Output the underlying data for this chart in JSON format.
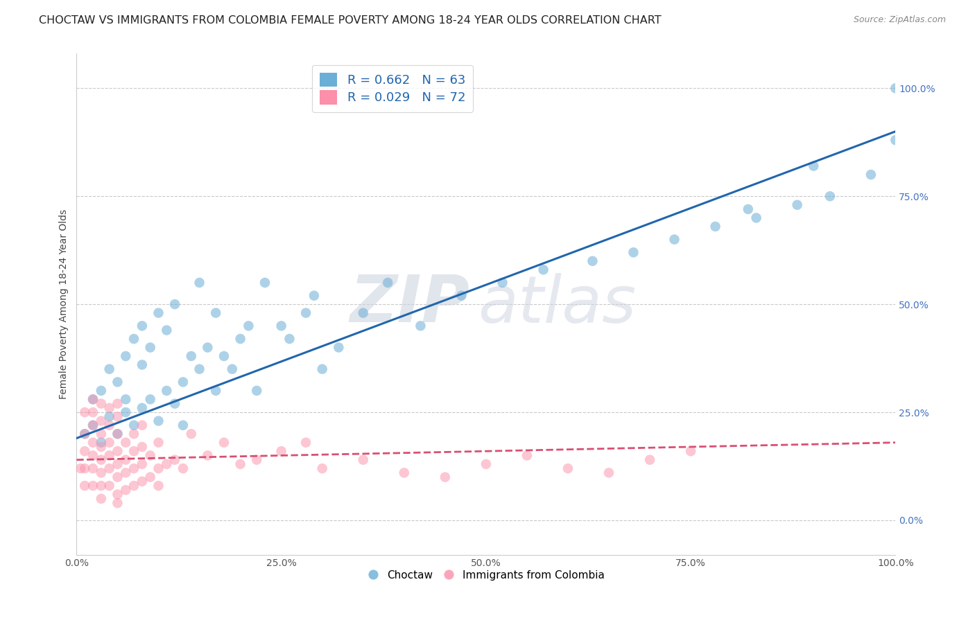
{
  "title": "CHOCTAW VS IMMIGRANTS FROM COLOMBIA FEMALE POVERTY AMONG 18-24 YEAR OLDS CORRELATION CHART",
  "source": "Source: ZipAtlas.com",
  "ylabel": "Female Poverty Among 18-24 Year Olds",
  "xlim": [
    0,
    100
  ],
  "ylim": [
    -8,
    108
  ],
  "xticks": [
    0,
    25,
    50,
    75,
    100
  ],
  "yticks": [
    0,
    25,
    50,
    75,
    100
  ],
  "xticklabels": [
    "0.0%",
    "25.0%",
    "50.0%",
    "75.0%",
    "100.0%"
  ],
  "yticklabels": [
    "0.0%",
    "25.0%",
    "50.0%",
    "75.0%",
    "100.0%"
  ],
  "blue_R": 0.662,
  "blue_N": 63,
  "pink_R": 0.029,
  "pink_N": 72,
  "blue_color": "#6baed6",
  "pink_color": "#fc8fa9",
  "blue_line_color": "#2166ac",
  "pink_line_color": "#d94f72",
  "legend_label_blue": "Choctaw",
  "legend_label_pink": "Immigrants from Colombia",
  "blue_scatter_x": [
    1,
    2,
    2,
    3,
    3,
    4,
    4,
    5,
    5,
    6,
    6,
    6,
    7,
    7,
    8,
    8,
    8,
    9,
    9,
    10,
    10,
    11,
    11,
    12,
    12,
    13,
    13,
    14,
    15,
    15,
    16,
    17,
    17,
    18,
    19,
    20,
    21,
    22,
    23,
    25,
    26,
    28,
    29,
    30,
    32,
    35,
    38,
    42,
    47,
    52,
    57,
    63,
    68,
    73,
    78,
    83,
    88,
    92,
    97,
    100,
    82,
    90,
    100
  ],
  "blue_scatter_y": [
    20,
    22,
    28,
    18,
    30,
    24,
    35,
    20,
    32,
    25,
    38,
    28,
    22,
    42,
    26,
    36,
    45,
    28,
    40,
    23,
    48,
    30,
    44,
    27,
    50,
    32,
    22,
    38,
    35,
    55,
    40,
    30,
    48,
    38,
    35,
    42,
    45,
    30,
    55,
    45,
    42,
    48,
    52,
    35,
    40,
    48,
    55,
    45,
    52,
    55,
    58,
    60,
    62,
    65,
    68,
    70,
    73,
    75,
    80,
    88,
    72,
    82,
    100
  ],
  "pink_scatter_x": [
    0.5,
    1,
    1,
    1,
    1,
    1,
    2,
    2,
    2,
    2,
    2,
    2,
    2,
    3,
    3,
    3,
    3,
    3,
    3,
    3,
    3,
    4,
    4,
    4,
    4,
    4,
    4,
    5,
    5,
    5,
    5,
    5,
    5,
    5,
    5,
    6,
    6,
    6,
    6,
    7,
    7,
    7,
    7,
    8,
    8,
    8,
    8,
    9,
    9,
    10,
    10,
    10,
    11,
    12,
    13,
    14,
    16,
    18,
    20,
    22,
    25,
    28,
    30,
    35,
    40,
    45,
    50,
    55,
    60,
    65,
    70,
    75
  ],
  "pink_scatter_y": [
    12,
    8,
    12,
    16,
    20,
    25,
    8,
    12,
    15,
    18,
    22,
    25,
    28,
    8,
    11,
    14,
    17,
    20,
    23,
    27,
    5,
    8,
    12,
    15,
    18,
    22,
    26,
    6,
    10,
    13,
    16,
    20,
    24,
    27,
    4,
    7,
    11,
    14,
    18,
    8,
    12,
    16,
    20,
    9,
    13,
    17,
    22,
    10,
    15,
    8,
    12,
    18,
    13,
    14,
    12,
    20,
    15,
    18,
    13,
    14,
    16,
    18,
    12,
    14,
    11,
    10,
    13,
    15,
    12,
    11,
    14,
    16
  ],
  "blue_line_x": [
    0,
    100
  ],
  "blue_line_y": [
    19,
    90
  ],
  "pink_line_x": [
    0,
    100
  ],
  "pink_line_y": [
    14,
    18
  ],
  "watermark_zip": "ZIP",
  "watermark_atlas": "atlas",
  "background_color": "#ffffff",
  "grid_color": "#bbbbbb",
  "title_fontsize": 11.5,
  "axis_label_fontsize": 10,
  "tick_fontsize": 10,
  "tick_color_right": "#4472c4",
  "tick_color_bottom": "#555555"
}
